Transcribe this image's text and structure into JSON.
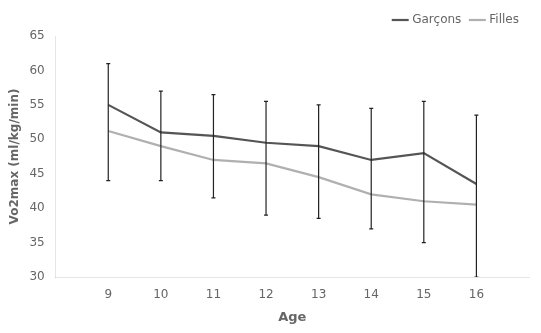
{
  "chart_data": {
    "type": "line",
    "x": [
      9,
      10,
      11,
      12,
      13,
      14,
      15,
      16
    ],
    "series": [
      {
        "name": "Garçons",
        "color": "#555555",
        "values": [
          55.0,
          51.0,
          50.5,
          49.5,
          49.0,
          47.0,
          48.0,
          43.5
        ],
        "err_upper": [
          6.0,
          6.0,
          6.0,
          6.0,
          6.0,
          7.5,
          7.5,
          10.0
        ],
        "err_lower": [
          11.0,
          7.0,
          9.0,
          10.5,
          10.5,
          10.0,
          13.0,
          13.5
        ]
      },
      {
        "name": "Filles",
        "color": "#b0b0b0",
        "values": [
          51.2,
          49.0,
          47.0,
          46.5,
          44.5,
          42.0,
          41.0,
          40.5
        ]
      }
    ],
    "xlabel": "Age",
    "ylabel": "Vo2max (ml/kg/min)",
    "xlim": [
      8,
      17
    ],
    "xticks": [
      9,
      10,
      11,
      12,
      13,
      14,
      15,
      16
    ],
    "ylim": [
      30,
      65
    ],
    "yticks": [
      30,
      35,
      40,
      45,
      50,
      55,
      60,
      65
    ],
    "grid": false,
    "legend": "upper right"
  }
}
